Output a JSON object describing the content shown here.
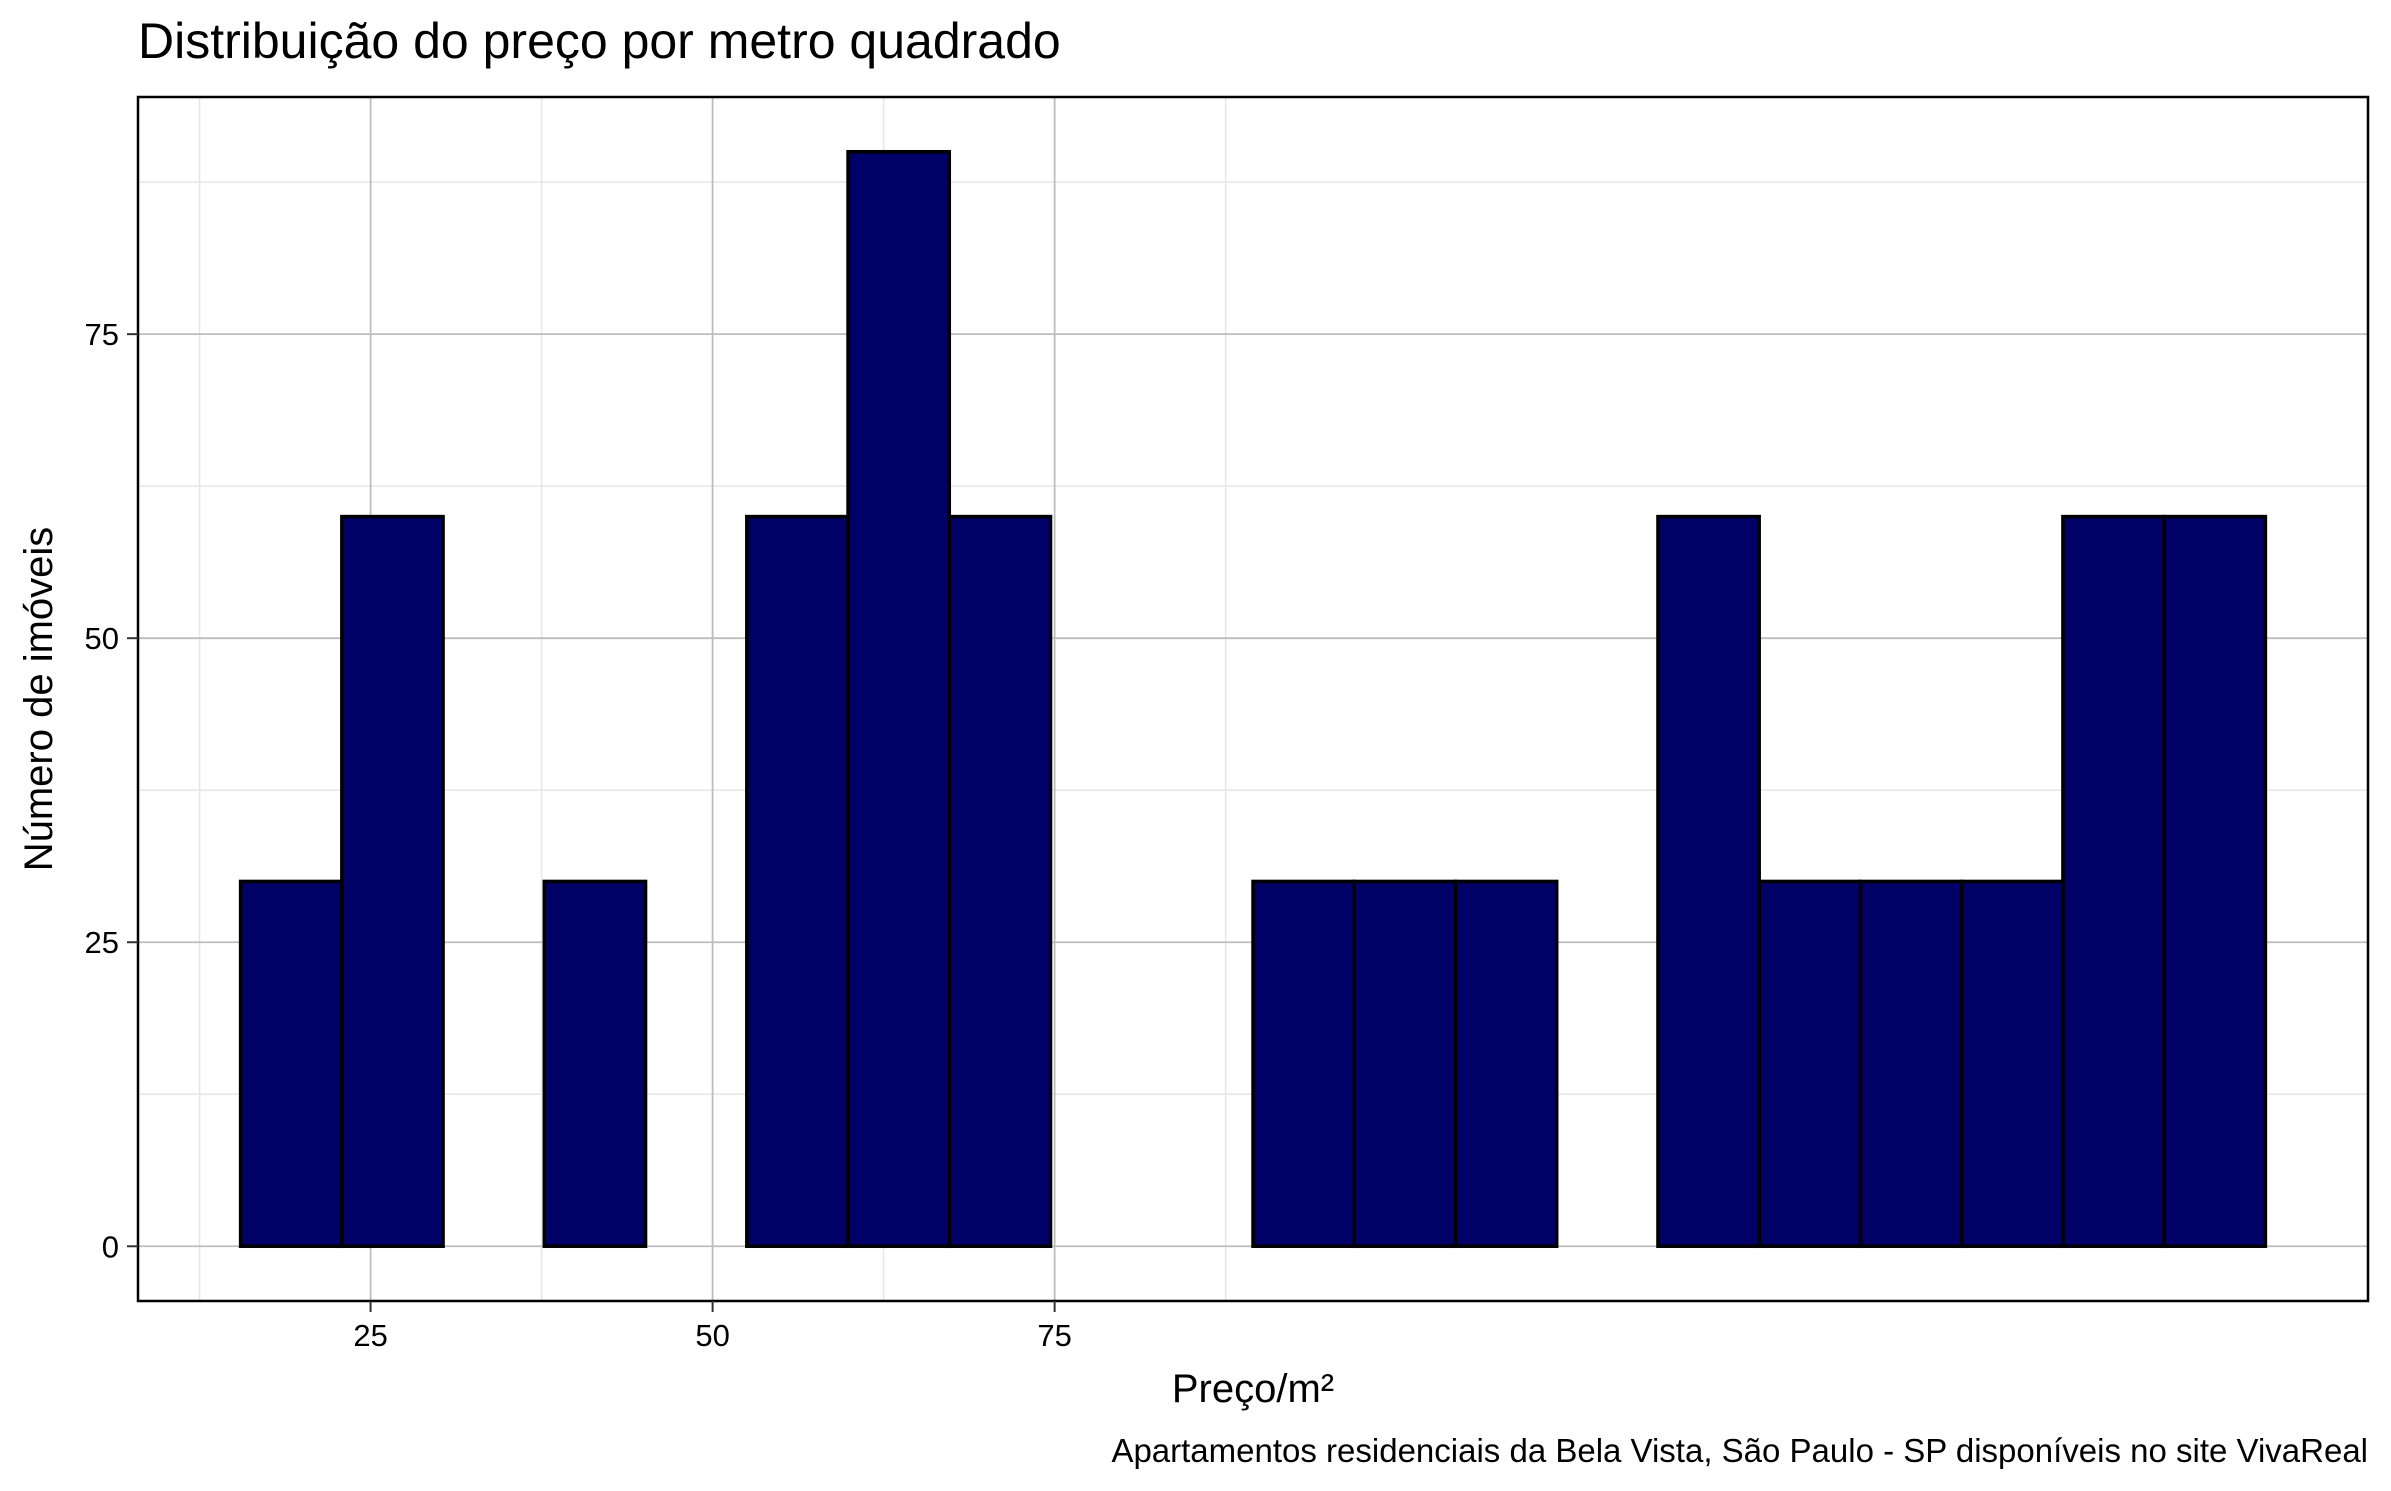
{
  "chart_data": {
    "type": "bar",
    "title": "Distribuição do preço por metro quadrado",
    "xlabel": "Preço/m²",
    "ylabel": "Número de imóveis",
    "caption": "Apartamentos residenciais da Bela Vista, São Paulo - SP disponíveis no site VivaReal",
    "x_bins": [
      [
        15.5,
        22.9
      ],
      [
        22.9,
        30.3
      ],
      [
        30.3,
        37.7
      ],
      [
        37.7,
        45.1
      ],
      [
        45.1,
        52.5
      ],
      [
        52.5,
        59.9
      ],
      [
        59.9,
        67.3
      ],
      [
        67.3,
        74.7
      ],
      [
        74.7,
        82.1
      ],
      [
        82.1,
        89.5
      ],
      [
        89.5,
        96.9
      ],
      [
        96.9,
        104.3
      ],
      [
        104.3,
        111.7
      ],
      [
        111.7,
        119.1
      ],
      [
        119.1,
        126.5
      ],
      [
        126.5,
        133.9
      ],
      [
        133.9,
        141.3
      ],
      [
        141.3,
        148.7
      ],
      [
        148.7,
        156.1
      ],
      [
        156.1,
        163.5
      ]
    ],
    "values": [
      30,
      60,
      0,
      30,
      0,
      60,
      90,
      60,
      0,
      0,
      30,
      30,
      30,
      0,
      60,
      30,
      30,
      30,
      60,
      60
    ],
    "xlim": [
      8,
      171
    ],
    "ylim": [
      -4.5,
      94.5
    ],
    "x_ticks": [
      25,
      50,
      75
    ],
    "x_tick_labels": [
      "25",
      "50",
      "75"
    ],
    "y_ticks": [
      0,
      25,
      50,
      75
    ],
    "y_tick_labels": [
      "0",
      "25",
      "50",
      "75"
    ],
    "grid": true,
    "colors": {
      "bar_fill": "#000066",
      "bar_stroke": "#000000",
      "grid_major": "#bdbdbd",
      "grid_minor": "#e6e6e6"
    }
  }
}
